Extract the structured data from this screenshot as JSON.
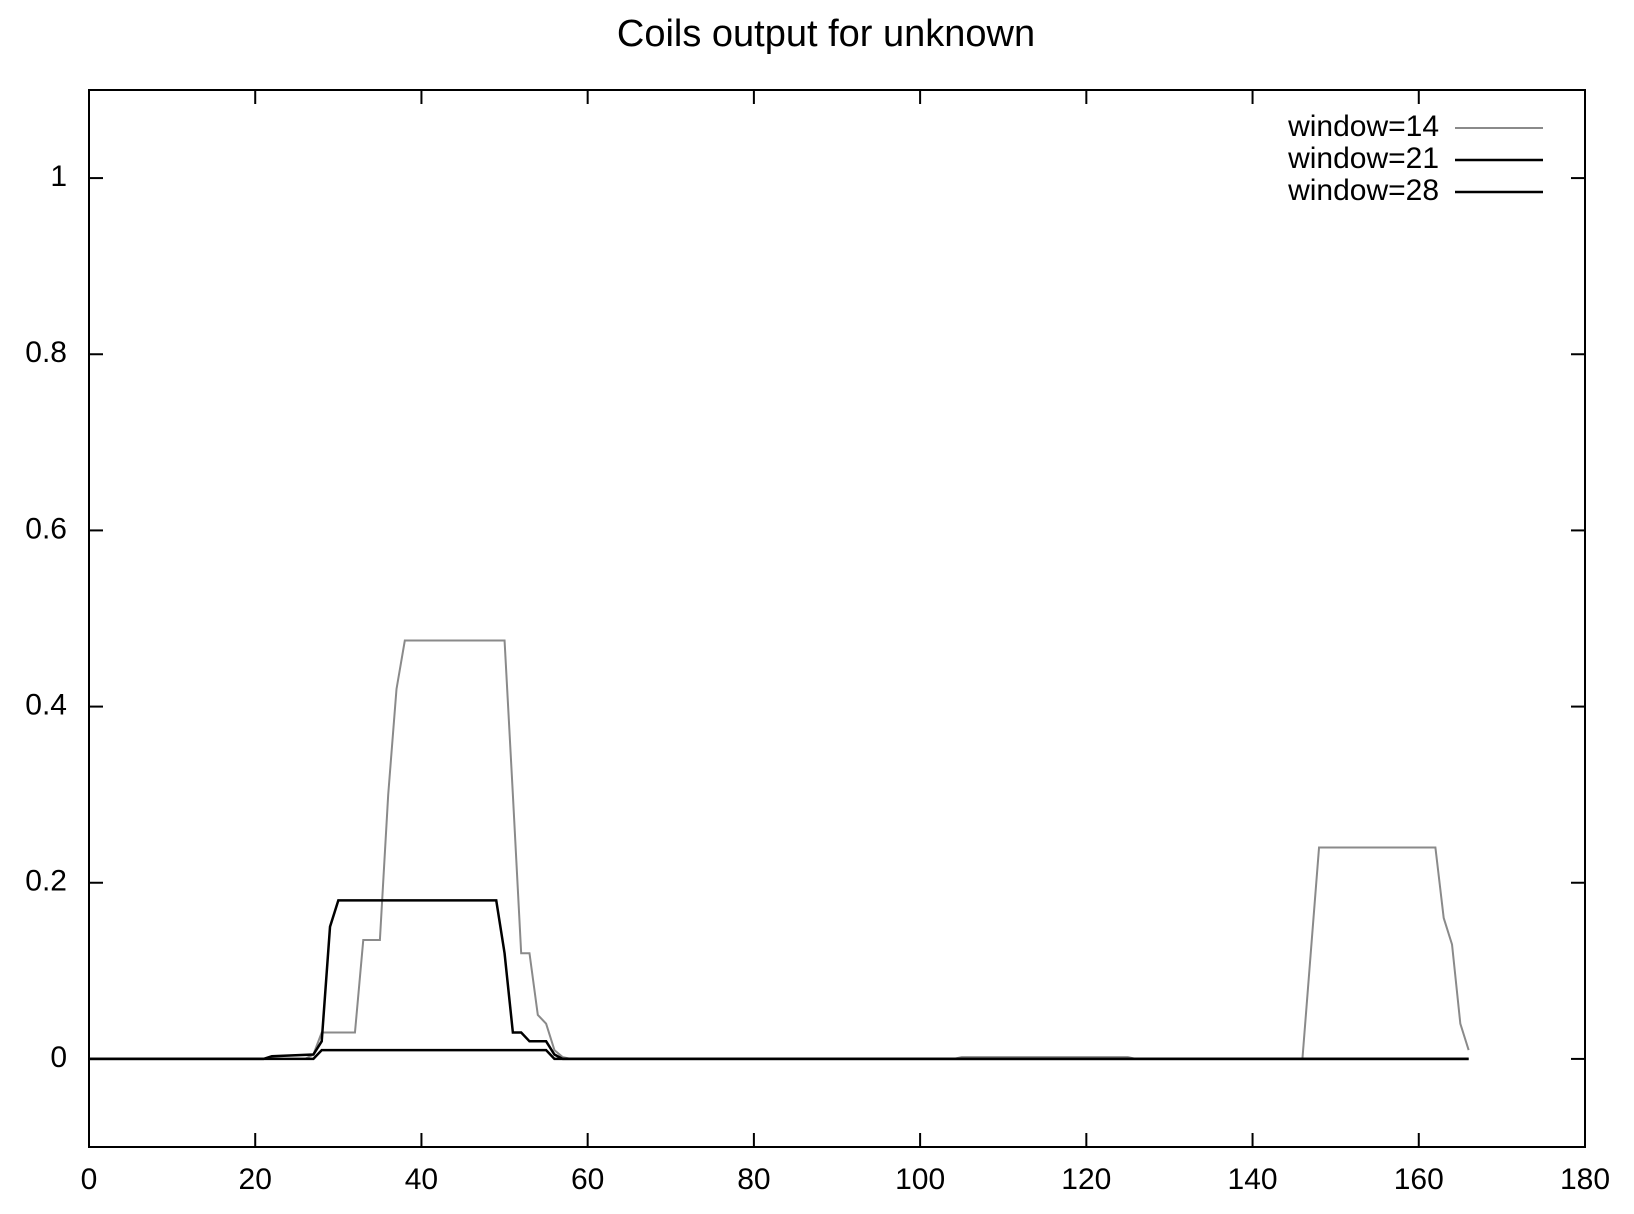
{
  "chart_data": {
    "type": "line",
    "title": "Coils output for unknown",
    "xlim": [
      0,
      180
    ],
    "xticks": [
      0,
      20,
      40,
      60,
      80,
      100,
      120,
      140,
      160,
      180
    ],
    "ylim": [
      -0.1,
      1.1
    ],
    "yticks": [
      0,
      0.2,
      0.4,
      0.6,
      0.8,
      1
    ],
    "legend": "top-right",
    "series": [
      {
        "name": "window=14",
        "color": "#8a8a8a",
        "x": [
          0,
          26,
          27,
          28,
          32,
          33,
          35,
          36,
          37,
          38,
          50,
          51,
          52,
          53,
          54,
          55,
          56,
          57,
          58,
          104,
          105,
          125,
          126,
          146,
          147,
          148,
          162,
          163,
          164,
          165,
          166
        ],
        "values": [
          0,
          0,
          0.005,
          0.03,
          0.03,
          0.135,
          0.135,
          0.3,
          0.42,
          0.475,
          0.475,
          0.3,
          0.12,
          0.12,
          0.05,
          0.04,
          0.01,
          0.002,
          0,
          0,
          0.002,
          0.002,
          0,
          0,
          0.12,
          0.24,
          0.24,
          0.16,
          0.13,
          0.04,
          0.01
        ]
      },
      {
        "name": "window=21",
        "color": "#000000",
        "x": [
          0,
          21,
          22,
          27,
          28,
          29,
          30,
          49,
          50,
          51,
          52,
          53,
          55,
          56,
          57,
          166
        ],
        "values": [
          0,
          0,
          0.003,
          0.005,
          0.02,
          0.15,
          0.18,
          0.18,
          0.12,
          0.03,
          0.03,
          0.02,
          0.02,
          0.005,
          0,
          0
        ]
      },
      {
        "name": "window=28",
        "color": "#000000",
        "x": [
          0,
          27,
          28,
          55,
          56,
          166
        ],
        "values": [
          0,
          0,
          0.01,
          0.01,
          0,
          0
        ]
      }
    ]
  }
}
